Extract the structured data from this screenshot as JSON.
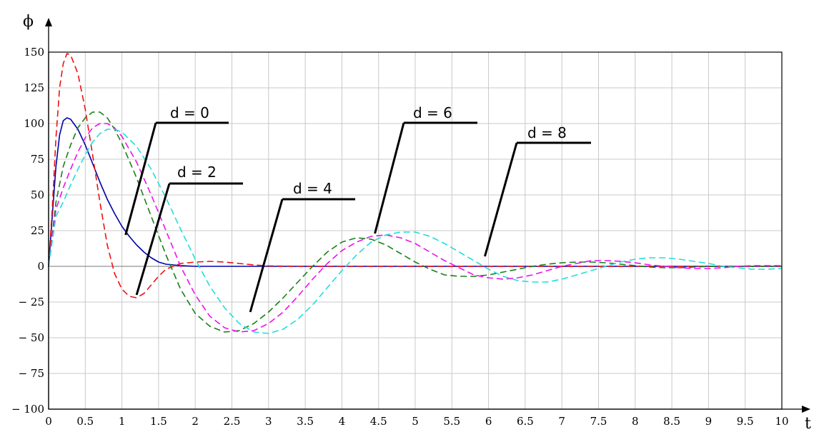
{
  "chart_data": {
    "type": "line",
    "title": "",
    "xlabel": "t",
    "ylabel": "ϕ",
    "xlim": [
      0,
      10
    ],
    "ylim": [
      -100,
      150
    ],
    "grid": true,
    "x_ticks": [
      "0",
      "0.5",
      "1",
      "1.5",
      "2",
      "2.5",
      "3",
      "3.5",
      "4",
      "4.5",
      "5",
      "5.5",
      "6",
      "6.5",
      "7",
      "7.5",
      "8",
      "8.5",
      "9",
      "9.5",
      "10"
    ],
    "y_ticks": [
      "150",
      "125",
      "100",
      "75",
      "50",
      "25",
      "0",
      "− 25",
      "− 50",
      "− 75",
      "− 100"
    ],
    "series": [
      {
        "color": "#0000aa",
        "dash": "solid",
        "points": [
          [
            0,
            0
          ],
          [
            0.05,
            35
          ],
          [
            0.1,
            70
          ],
          [
            0.15,
            92
          ],
          [
            0.2,
            102
          ],
          [
            0.25,
            104
          ],
          [
            0.3,
            103
          ],
          [
            0.4,
            96
          ],
          [
            0.5,
            85
          ],
          [
            0.6,
            72
          ],
          [
            0.7,
            59
          ],
          [
            0.8,
            47
          ],
          [
            0.9,
            37
          ],
          [
            1.0,
            28
          ],
          [
            1.1,
            21
          ],
          [
            1.2,
            15
          ],
          [
            1.3,
            10
          ],
          [
            1.4,
            6
          ],
          [
            1.5,
            3
          ],
          [
            1.6,
            1.5
          ],
          [
            1.8,
            0.5
          ],
          [
            2.0,
            0
          ],
          [
            10,
            0
          ]
        ]
      },
      {
        "color": "#ee1111",
        "dash": "dashed",
        "points": [
          [
            0,
            0
          ],
          [
            0.05,
            40
          ],
          [
            0.1,
            90
          ],
          [
            0.15,
            125
          ],
          [
            0.2,
            142
          ],
          [
            0.25,
            149
          ],
          [
            0.3,
            148
          ],
          [
            0.4,
            135
          ],
          [
            0.5,
            110
          ],
          [
            0.6,
            78
          ],
          [
            0.7,
            45
          ],
          [
            0.8,
            15
          ],
          [
            0.9,
            -5
          ],
          [
            1.0,
            -16
          ],
          [
            1.1,
            -21
          ],
          [
            1.2,
            -22
          ],
          [
            1.3,
            -19
          ],
          [
            1.4,
            -13
          ],
          [
            1.5,
            -7
          ],
          [
            1.6,
            -2
          ],
          [
            1.8,
            2
          ],
          [
            2.0,
            3
          ],
          [
            2.2,
            3.5
          ],
          [
            2.4,
            3
          ],
          [
            2.6,
            2
          ],
          [
            2.8,
            1
          ],
          [
            3.0,
            0.3
          ],
          [
            3.5,
            0
          ],
          [
            10,
            0
          ]
        ]
      },
      {
        "color": "#1a7f1a",
        "dash": "dashed",
        "points": [
          [
            0,
            0
          ],
          [
            0.1,
            45
          ],
          [
            0.2,
            70
          ],
          [
            0.3,
            85
          ],
          [
            0.4,
            97
          ],
          [
            0.5,
            104
          ],
          [
            0.6,
            108
          ],
          [
            0.7,
            108
          ],
          [
            0.8,
            104
          ],
          [
            0.9,
            96
          ],
          [
            1.0,
            86
          ],
          [
            1.2,
            62
          ],
          [
            1.4,
            35
          ],
          [
            1.6,
            8
          ],
          [
            1.8,
            -16
          ],
          [
            2.0,
            -33
          ],
          [
            2.2,
            -42
          ],
          [
            2.4,
            -46
          ],
          [
            2.6,
            -45
          ],
          [
            2.8,
            -40
          ],
          [
            3.0,
            -32
          ],
          [
            3.2,
            -22
          ],
          [
            3.4,
            -11
          ],
          [
            3.6,
            0
          ],
          [
            3.8,
            10
          ],
          [
            4.0,
            17
          ],
          [
            4.2,
            20
          ],
          [
            4.4,
            19
          ],
          [
            4.6,
            15
          ],
          [
            4.8,
            9
          ],
          [
            5.0,
            3
          ],
          [
            5.2,
            -2
          ],
          [
            5.4,
            -6
          ],
          [
            5.6,
            -7
          ],
          [
            5.8,
            -7
          ],
          [
            6.0,
            -6
          ],
          [
            6.2,
            -4
          ],
          [
            6.4,
            -2
          ],
          [
            6.6,
            0
          ],
          [
            6.8,
            1.5
          ],
          [
            7.0,
            2.5
          ],
          [
            7.2,
            3
          ],
          [
            7.4,
            3
          ],
          [
            7.6,
            2.5
          ],
          [
            7.8,
            1.5
          ],
          [
            8.0,
            0.5
          ],
          [
            8.2,
            -0.5
          ],
          [
            8.4,
            -1
          ],
          [
            8.6,
            -1
          ],
          [
            8.8,
            -0.5
          ],
          [
            9.0,
            0
          ],
          [
            10,
            0
          ]
        ]
      },
      {
        "color": "#ee11ee",
        "dash": "dashed",
        "points": [
          [
            0,
            0
          ],
          [
            0.1,
            40
          ],
          [
            0.2,
            55
          ],
          [
            0.3,
            68
          ],
          [
            0.4,
            80
          ],
          [
            0.5,
            90
          ],
          [
            0.6,
            97
          ],
          [
            0.7,
            100
          ],
          [
            0.8,
            100
          ],
          [
            0.9,
            97
          ],
          [
            1.0,
            91
          ],
          [
            1.2,
            73
          ],
          [
            1.4,
            50
          ],
          [
            1.6,
            25
          ],
          [
            1.8,
            0
          ],
          [
            2.0,
            -20
          ],
          [
            2.2,
            -35
          ],
          [
            2.4,
            -43
          ],
          [
            2.6,
            -46
          ],
          [
            2.8,
            -45
          ],
          [
            3.0,
            -40
          ],
          [
            3.2,
            -32
          ],
          [
            3.4,
            -21
          ],
          [
            3.6,
            -9
          ],
          [
            3.8,
            2
          ],
          [
            4.0,
            11
          ],
          [
            4.2,
            17
          ],
          [
            4.4,
            21
          ],
          [
            4.6,
            22
          ],
          [
            4.8,
            20
          ],
          [
            5.0,
            16
          ],
          [
            5.2,
            10
          ],
          [
            5.4,
            4
          ],
          [
            5.6,
            -1
          ],
          [
            5.8,
            -6
          ],
          [
            6.0,
            -8
          ],
          [
            6.2,
            -9
          ],
          [
            6.4,
            -8
          ],
          [
            6.6,
            -6
          ],
          [
            6.8,
            -3
          ],
          [
            7.0,
            0
          ],
          [
            7.2,
            2
          ],
          [
            7.4,
            4
          ],
          [
            7.6,
            4
          ],
          [
            7.8,
            3.5
          ],
          [
            8.0,
            2.5
          ],
          [
            8.2,
            1
          ],
          [
            8.4,
            0
          ],
          [
            8.6,
            -1
          ],
          [
            8.8,
            -1.5
          ],
          [
            9.0,
            -1.5
          ],
          [
            9.2,
            -1
          ],
          [
            9.4,
            0
          ],
          [
            9.6,
            0.5
          ],
          [
            10,
            0.5
          ]
        ]
      },
      {
        "color": "#22dddd",
        "dash": "dashed",
        "points": [
          [
            0,
            0
          ],
          [
            0.1,
            35
          ],
          [
            0.2,
            45
          ],
          [
            0.3,
            57
          ],
          [
            0.4,
            68
          ],
          [
            0.5,
            78
          ],
          [
            0.6,
            87
          ],
          [
            0.7,
            93
          ],
          [
            0.8,
            96
          ],
          [
            0.9,
            96
          ],
          [
            1.0,
            94
          ],
          [
            1.2,
            84
          ],
          [
            1.4,
            68
          ],
          [
            1.6,
            48
          ],
          [
            1.8,
            26
          ],
          [
            2.0,
            5
          ],
          [
            2.2,
            -14
          ],
          [
            2.4,
            -29
          ],
          [
            2.6,
            -40
          ],
          [
            2.8,
            -46
          ],
          [
            3.0,
            -47
          ],
          [
            3.2,
            -44
          ],
          [
            3.4,
            -37
          ],
          [
            3.6,
            -27
          ],
          [
            3.8,
            -15
          ],
          [
            4.0,
            -3
          ],
          [
            4.2,
            8
          ],
          [
            4.4,
            17
          ],
          [
            4.6,
            22
          ],
          [
            4.8,
            24
          ],
          [
            5.0,
            24
          ],
          [
            5.2,
            21
          ],
          [
            5.4,
            16
          ],
          [
            5.6,
            10
          ],
          [
            5.8,
            4
          ],
          [
            6.0,
            -2
          ],
          [
            6.2,
            -7
          ],
          [
            6.4,
            -10
          ],
          [
            6.6,
            -11
          ],
          [
            6.8,
            -11
          ],
          [
            7.0,
            -9
          ],
          [
            7.2,
            -6
          ],
          [
            7.4,
            -3
          ],
          [
            7.6,
            0
          ],
          [
            7.8,
            3
          ],
          [
            8.0,
            5
          ],
          [
            8.2,
            6
          ],
          [
            8.4,
            6
          ],
          [
            8.6,
            5
          ],
          [
            8.8,
            3.5
          ],
          [
            9.0,
            2
          ],
          [
            9.2,
            0
          ],
          [
            9.4,
            -1
          ],
          [
            9.6,
            -2
          ],
          [
            9.8,
            -2
          ],
          [
            10,
            -1.5
          ]
        ]
      }
    ],
    "annotations": [
      {
        "text": "d = 0",
        "target": [
          1.05,
          22
        ]
      },
      {
        "text": "d = 2",
        "target": [
          1.2,
          -20
        ]
      },
      {
        "text": "d = 4",
        "target": [
          2.75,
          -32
        ]
      },
      {
        "text": "d = 6",
        "target": [
          4.45,
          23
        ]
      },
      {
        "text": "d = 8",
        "target": [
          5.95,
          7
        ]
      }
    ]
  }
}
